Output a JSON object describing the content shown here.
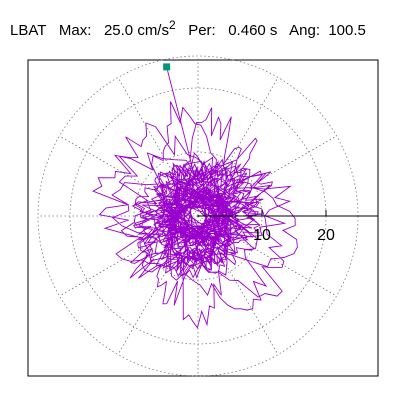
{
  "header": {
    "station": "LBAT",
    "max_label": "Max:",
    "max_value": "25.0 cm/s",
    "max_exp": "2",
    "per_label": "Per:",
    "per_value": "0.460 s",
    "ang_label": "Ang:",
    "ang_value": "100.5"
  },
  "chart_data": {
    "type": "polar-trace",
    "title": "",
    "radial_range": [
      0,
      25
    ],
    "radial_ticks": [
      10,
      20
    ],
    "radial_tick_labels": [
      "10",
      "20"
    ],
    "grid_rings": [
      10,
      20
    ],
    "grid_spokes_deg": [
      0,
      30,
      60,
      90,
      120,
      150,
      180,
      210,
      240,
      270,
      300,
      330
    ],
    "grid": true,
    "trace_color": "#9900cc",
    "marker_color": "#009977",
    "marker": {
      "x": -4.9,
      "y": 23.3
    }
  }
}
